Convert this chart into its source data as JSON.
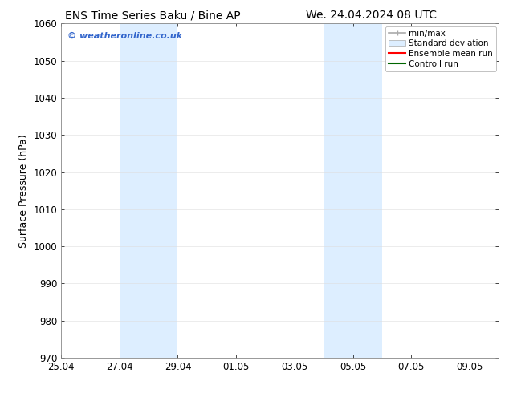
{
  "title_left": "ENS Time Series Baku / Bine AP",
  "title_right": "We. 24.04.2024 08 UTC",
  "ylabel": "Surface Pressure (hPa)",
  "ylim": [
    970,
    1060
  ],
  "yticks": [
    970,
    980,
    990,
    1000,
    1010,
    1020,
    1030,
    1040,
    1050,
    1060
  ],
  "x_start": "2024-04-25",
  "x_end": "2024-05-10",
  "xtick_labels": [
    "25.04",
    "27.04",
    "29.04",
    "01.05",
    "03.05",
    "05.05",
    "07.05",
    "09.05"
  ],
  "xtick_offsets": [
    0,
    2,
    4,
    6,
    8,
    10,
    12,
    14
  ],
  "shaded_bands": [
    {
      "x_start": 2,
      "x_end": 4
    },
    {
      "x_start": 9,
      "x_end": 11
    }
  ],
  "shade_color": "#ddeeff",
  "watermark_text": "© weatheronline.co.uk",
  "watermark_color": "#3366cc",
  "legend_entries": [
    {
      "label": "min/max",
      "color": "#aaaaaa",
      "lw": 1.2,
      "style": "line_with_caps"
    },
    {
      "label": "Standard deviation",
      "color": "#ddeeff",
      "lw": 8,
      "style": "thick"
    },
    {
      "label": "Ensemble mean run",
      "color": "#ff0000",
      "lw": 1.5,
      "style": "line"
    },
    {
      "label": "Controll run",
      "color": "#006600",
      "lw": 1.5,
      "style": "line"
    }
  ],
  "bg_color": "#ffffff",
  "title_fontsize": 10,
  "label_fontsize": 9,
  "tick_fontsize": 8.5,
  "legend_fontsize": 7.5
}
